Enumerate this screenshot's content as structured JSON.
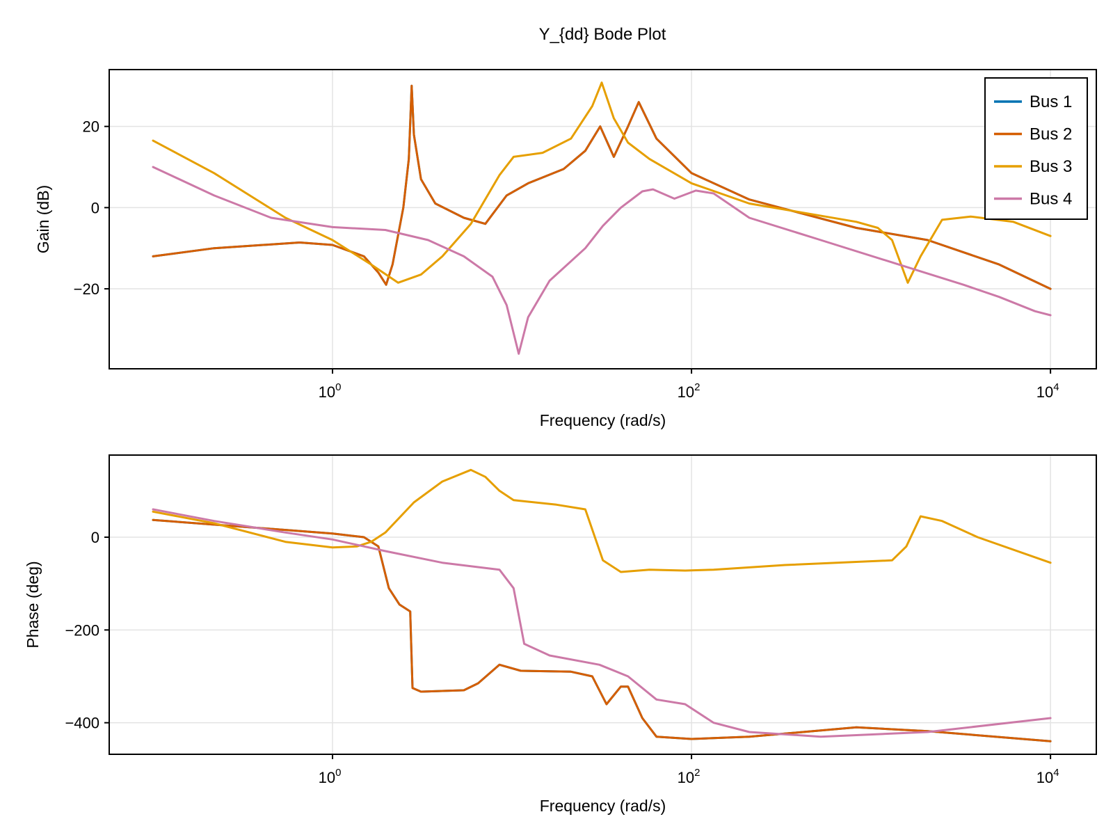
{
  "title": "Y_{dd} Bode Plot",
  "legend": {
    "placement": "top-right",
    "entries": [
      {
        "label": "Bus 1",
        "color": "#0072b2"
      },
      {
        "label": "Bus 2",
        "color": "#d55e00"
      },
      {
        "label": "Bus 3",
        "color": "#e69f00"
      },
      {
        "label": "Bus 4",
        "color": "#cc79a7"
      }
    ]
  },
  "chart_data": [
    {
      "type": "line",
      "xlabel": "Frequency (rad/s)",
      "ylabel": "Gain (dB)",
      "xscale": "log",
      "xlim": [
        0.057,
        18000
      ],
      "ylim": [
        -39.7,
        34
      ],
      "xticks": [
        {
          "value": 1,
          "base": "10",
          "exp": "0"
        },
        {
          "value": 100,
          "base": "10",
          "exp": "2"
        },
        {
          "value": 10000,
          "base": "10",
          "exp": "4"
        }
      ],
      "yticks": [
        {
          "value": 20,
          "label": "20"
        },
        {
          "value": 0,
          "label": "0"
        },
        {
          "value": -20,
          "label": "−20"
        }
      ],
      "grid": true,
      "series": [
        {
          "name": "Bus 1",
          "color": "#0072b2",
          "points": [
            [
              0.1,
              -12
            ],
            [
              0.219,
              -10
            ],
            [
              0.656,
              -8.6
            ],
            [
              1,
              -9.2
            ],
            [
              1.496,
              -12
            ],
            [
              1.8,
              -16
            ],
            [
              1.99,
              -19
            ],
            [
              2.16,
              -14
            ],
            [
              2.48,
              0
            ],
            [
              2.66,
              12
            ],
            [
              2.76,
              30
            ],
            [
              2.84,
              18
            ],
            [
              3.11,
              7
            ],
            [
              3.74,
              1
            ],
            [
              5.39,
              -2.5
            ],
            [
              7.1,
              -4
            ],
            [
              9.33,
              3
            ],
            [
              12.3,
              6
            ],
            [
              19.4,
              9.5
            ],
            [
              25.6,
              14
            ],
            [
              31,
              20
            ],
            [
              36.9,
              12.5
            ],
            [
              44.3,
              20
            ],
            [
              50.8,
              26
            ],
            [
              63.8,
              17
            ],
            [
              100,
              8.5
            ],
            [
              210,
              2
            ],
            [
              829,
              -5
            ],
            [
              2070,
              -8
            ],
            [
              5176,
              -14
            ],
            [
              10000,
              -20
            ]
          ]
        },
        {
          "name": "Bus 2",
          "color": "#d55e00",
          "points": [
            [
              0.1,
              -12
            ],
            [
              0.219,
              -10
            ],
            [
              0.656,
              -8.6
            ],
            [
              1,
              -9.2
            ],
            [
              1.496,
              -12
            ],
            [
              1.8,
              -16
            ],
            [
              1.99,
              -19
            ],
            [
              2.16,
              -14
            ],
            [
              2.48,
              0
            ],
            [
              2.66,
              12
            ],
            [
              2.76,
              30
            ],
            [
              2.84,
              18
            ],
            [
              3.11,
              7
            ],
            [
              3.74,
              1
            ],
            [
              5.39,
              -2.5
            ],
            [
              7.1,
              -4
            ],
            [
              9.33,
              3
            ],
            [
              12.3,
              6
            ],
            [
              19.4,
              9.5
            ],
            [
              25.6,
              14
            ],
            [
              31,
              20
            ],
            [
              36.9,
              12.5
            ],
            [
              44.3,
              20
            ],
            [
              50.8,
              26
            ],
            [
              63.8,
              17
            ],
            [
              100,
              8.5
            ],
            [
              210,
              2
            ],
            [
              829,
              -5
            ],
            [
              2070,
              -8
            ],
            [
              5176,
              -14
            ],
            [
              10000,
              -20
            ]
          ]
        },
        {
          "name": "Bus 3",
          "color": "#e69f00",
          "points": [
            [
              0.1,
              16.5
            ],
            [
              0.219,
              8.5
            ],
            [
              0.547,
              -2.5
            ],
            [
              1,
              -8
            ],
            [
              1.64,
              -14
            ],
            [
              2.32,
              -18.5
            ],
            [
              3.11,
              -16.5
            ],
            [
              4.09,
              -12
            ],
            [
              5.9,
              -4
            ],
            [
              8.51,
              8
            ],
            [
              10.2,
              12.5
            ],
            [
              14.8,
              13.5
            ],
            [
              21.3,
              17
            ],
            [
              28,
              25
            ],
            [
              31.6,
              30.8
            ],
            [
              36.9,
              22
            ],
            [
              44.3,
              16
            ],
            [
              58.3,
              12
            ],
            [
              100,
              6
            ],
            [
              210,
              1
            ],
            [
              829,
              -3.5
            ],
            [
              1091,
              -5
            ],
            [
              1310,
              -8
            ],
            [
              1603,
              -18.5
            ],
            [
              1890,
              -12
            ],
            [
              2489,
              -3
            ],
            [
              3589,
              -2.2
            ],
            [
              6213,
              -3.5
            ],
            [
              10000,
              -7
            ]
          ]
        },
        {
          "name": "Bus 4",
          "color": "#cc79a7",
          "points": [
            [
              0.1,
              10
            ],
            [
              0.219,
              3
            ],
            [
              0.455,
              -2.5
            ],
            [
              1,
              -4.8
            ],
            [
              1.97,
              -5.5
            ],
            [
              3.41,
              -8
            ],
            [
              5.39,
              -12
            ],
            [
              7.78,
              -17
            ],
            [
              9.33,
              -24
            ],
            [
              10.9,
              -36
            ],
            [
              12.3,
              -27
            ],
            [
              16.2,
              -18
            ],
            [
              25.6,
              -10
            ],
            [
              32.1,
              -4.5
            ],
            [
              40.4,
              0
            ],
            [
              53.2,
              4
            ],
            [
              61,
              4.5
            ],
            [
              80.3,
              2.2
            ],
            [
              105.7,
              4.2
            ],
            [
              132.8,
              3.5
            ],
            [
              210,
              -2.5
            ],
            [
              525,
              -8
            ],
            [
              1310,
              -13.5
            ],
            [
              3273,
              -19
            ],
            [
              5176,
              -22
            ],
            [
              8185,
              -25.5
            ],
            [
              10000,
              -26.5
            ]
          ]
        }
      ]
    },
    {
      "type": "line",
      "xlabel": "Frequency (rad/s)",
      "ylabel": "Phase (deg)",
      "xscale": "log",
      "xlim": [
        0.057,
        18000
      ],
      "ylim": [
        -468,
        177
      ],
      "xticks": [
        {
          "value": 1,
          "base": "10",
          "exp": "0"
        },
        {
          "value": 100,
          "base": "10",
          "exp": "2"
        },
        {
          "value": 10000,
          "base": "10",
          "exp": "4"
        }
      ],
      "yticks": [
        {
          "value": 0,
          "label": "0"
        },
        {
          "value": -200,
          "label": "−200"
        },
        {
          "value": -400,
          "label": "−400"
        }
      ],
      "grid": true,
      "series": [
        {
          "name": "Bus 1",
          "color": "#0072b2",
          "points": [
            [
              0.1,
              37
            ],
            [
              1,
              8
            ],
            [
              1.496,
              0
            ],
            [
              1.8,
              -20
            ],
            [
              2.06,
              -110
            ],
            [
              2.36,
              -145
            ],
            [
              2.71,
              -160
            ],
            [
              2.79,
              -325
            ],
            [
              3.11,
              -333
            ],
            [
              5.39,
              -330
            ],
            [
              6.47,
              -315
            ],
            [
              8.51,
              -275
            ],
            [
              11.2,
              -288
            ],
            [
              21.3,
              -290
            ],
            [
              28,
              -300
            ],
            [
              33.6,
              -360
            ],
            [
              40.4,
              -322
            ],
            [
              44.3,
              -322
            ],
            [
              53.2,
              -390
            ],
            [
              63.8,
              -430
            ],
            [
              100,
              -435
            ],
            [
              210,
              -430
            ],
            [
              829,
              -410
            ],
            [
              2070,
              -418
            ],
            [
              10000,
              -440
            ]
          ]
        },
        {
          "name": "Bus 2",
          "color": "#d55e00",
          "points": [
            [
              0.1,
              37
            ],
            [
              1,
              8
            ],
            [
              1.496,
              0
            ],
            [
              1.8,
              -20
            ],
            [
              2.06,
              -110
            ],
            [
              2.36,
              -145
            ],
            [
              2.71,
              -160
            ],
            [
              2.79,
              -325
            ],
            [
              3.11,
              -333
            ],
            [
              5.39,
              -330
            ],
            [
              6.47,
              -315
            ],
            [
              8.51,
              -275
            ],
            [
              11.2,
              -288
            ],
            [
              21.3,
              -290
            ],
            [
              28,
              -300
            ],
            [
              33.6,
              -360
            ],
            [
              40.4,
              -322
            ],
            [
              44.3,
              -322
            ],
            [
              53.2,
              -390
            ],
            [
              63.8,
              -430
            ],
            [
              100,
              -435
            ],
            [
              210,
              -430
            ],
            [
              829,
              -410
            ],
            [
              2070,
              -418
            ],
            [
              10000,
              -440
            ]
          ]
        },
        {
          "name": "Bus 3",
          "color": "#e69f00",
          "points": [
            [
              0.1,
              55
            ],
            [
              0.219,
              30
            ],
            [
              0.547,
              -10
            ],
            [
              1,
              -22
            ],
            [
              1.365,
              -20
            ],
            [
              1.64,
              -10
            ],
            [
              1.97,
              10
            ],
            [
              2.84,
              75
            ],
            [
              4.09,
              120
            ],
            [
              5.9,
              145
            ],
            [
              7.1,
              130
            ],
            [
              8.51,
              100
            ],
            [
              10.2,
              80
            ],
            [
              17.7,
              70
            ],
            [
              25.6,
              60
            ],
            [
              32.1,
              -50
            ],
            [
              40.4,
              -75
            ],
            [
              58.3,
              -70
            ],
            [
              92.1,
              -72
            ],
            [
              132.8,
              -70
            ],
            [
              332,
              -60
            ],
            [
              1310,
              -50
            ],
            [
              1574,
              -20
            ],
            [
              1890,
              45
            ],
            [
              2489,
              35
            ],
            [
              3927,
              0
            ],
            [
              10000,
              -55
            ]
          ]
        },
        {
          "name": "Bus 4",
          "color": "#cc79a7",
          "points": [
            [
              0.1,
              60
            ],
            [
              0.219,
              35
            ],
            [
              0.547,
              10
            ],
            [
              1,
              -5
            ],
            [
              1.97,
              -30
            ],
            [
              4.09,
              -55
            ],
            [
              8.51,
              -70
            ],
            [
              10.2,
              -110
            ],
            [
              11.7,
              -230
            ],
            [
              16.2,
              -255
            ],
            [
              30.7,
              -275
            ],
            [
              44.3,
              -300
            ],
            [
              63.8,
              -350
            ],
            [
              92.1,
              -360
            ],
            [
              132.8,
              -400
            ],
            [
              210,
              -420
            ],
            [
              525,
              -430
            ],
            [
              2070,
              -420
            ],
            [
              10000,
              -390
            ]
          ]
        }
      ]
    }
  ]
}
